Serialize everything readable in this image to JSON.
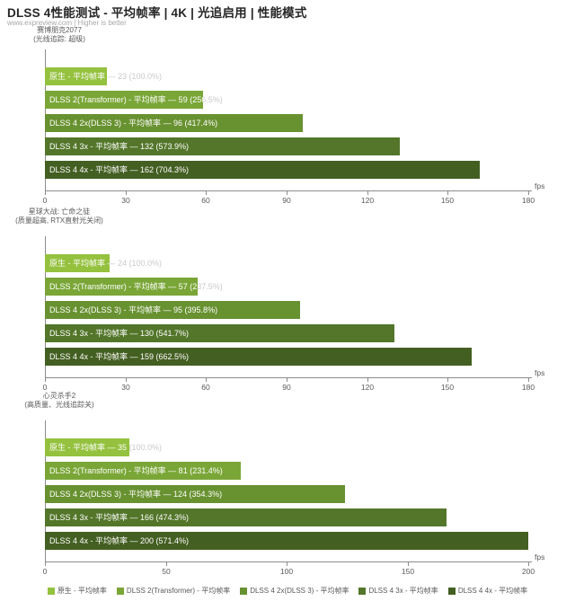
{
  "header": {
    "title": "DLSS 4性能测试 - 平均帧率 | 4K | 光追启用 | 性能模式",
    "subtitle": "www.expreview.com | Higher is better"
  },
  "metric": "平均帧率",
  "axis_unit": "fps",
  "bar_colors": [
    "#94c13e",
    "#7aa637",
    "#689130",
    "#53762a",
    "#445f22"
  ],
  "chart_data": [
    {
      "type": "bar",
      "title": "赛博朋克2077",
      "subtitle": "(光线追踪: 超级)",
      "xlabel": "fps",
      "xlim": [
        0,
        180
      ],
      "ticks": [
        0,
        30,
        60,
        90,
        120,
        150,
        180
      ],
      "series": [
        {
          "name": "原生",
          "value": 23,
          "pct": "100.0%"
        },
        {
          "name": "DLSS 2(Transformer)",
          "value": 59,
          "pct": "256.5%"
        },
        {
          "name": "DLSS 4 2x(DLSS 3)",
          "value": 96,
          "pct": "417.4%"
        },
        {
          "name": "DLSS 4 3x",
          "value": 132,
          "pct": "573.9%"
        },
        {
          "name": "DLSS 4 4x",
          "value": 162,
          "pct": "704.3%"
        }
      ]
    },
    {
      "type": "bar",
      "title": "星球大战: 亡命之徒",
      "subtitle": "(质量超高, RTX直射光关闭)",
      "xlabel": "fps",
      "xlim": [
        0,
        180
      ],
      "ticks": [
        0,
        30,
        60,
        90,
        120,
        150,
        180
      ],
      "series": [
        {
          "name": "原生",
          "value": 24,
          "pct": "100.0%"
        },
        {
          "name": "DLSS 2(Transformer)",
          "value": 57,
          "pct": "237.5%"
        },
        {
          "name": "DLSS 4 2x(DLSS 3)",
          "value": 95,
          "pct": "395.8%"
        },
        {
          "name": "DLSS 4 3x",
          "value": 130,
          "pct": "541.7%"
        },
        {
          "name": "DLSS 4 4x",
          "value": 159,
          "pct": "662.5%"
        }
      ]
    },
    {
      "type": "bar",
      "title": "心灵杀手2",
      "subtitle": "(高质量、光线追踪关)",
      "xlabel": "fps",
      "xlim": [
        0,
        200
      ],
      "ticks": [
        0,
        50,
        100,
        150,
        200
      ],
      "series": [
        {
          "name": "原生",
          "value": 35,
          "pct": "100.0%"
        },
        {
          "name": "DLSS 2(Transformer)",
          "value": 81,
          "pct": "231.4%"
        },
        {
          "name": "DLSS 4 2x(DLSS 3)",
          "value": 124,
          "pct": "354.3%"
        },
        {
          "name": "DLSS 4 3x",
          "value": 166,
          "pct": "474.3%"
        },
        {
          "name": "DLSS 4 4x",
          "value": 200,
          "pct": "571.4%"
        }
      ]
    }
  ],
  "legend": [
    {
      "label": "原生 - 平均帧率"
    },
    {
      "label": "DLSS 2(Transformer) - 平均帧率"
    },
    {
      "label": "DLSS 4 2x(DLSS 3) - 平均帧率"
    },
    {
      "label": "DLSS 4 3x - 平均帧率"
    },
    {
      "label": "DLSS 4 4x - 平均帧率"
    }
  ]
}
